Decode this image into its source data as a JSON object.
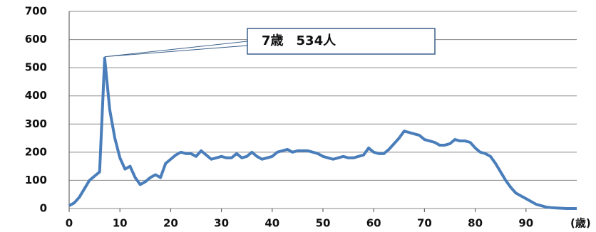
{
  "chart_data": {
    "type": "line",
    "x": [
      0,
      1,
      2,
      3,
      4,
      5,
      6,
      7,
      8,
      9,
      10,
      11,
      12,
      13,
      14,
      15,
      16,
      17,
      18,
      19,
      20,
      21,
      22,
      23,
      24,
      25,
      26,
      27,
      28,
      29,
      30,
      31,
      32,
      33,
      34,
      35,
      36,
      37,
      38,
      39,
      40,
      41,
      42,
      43,
      44,
      45,
      46,
      47,
      48,
      49,
      50,
      51,
      52,
      53,
      54,
      55,
      56,
      57,
      58,
      59,
      60,
      61,
      62,
      63,
      64,
      65,
      66,
      67,
      68,
      69,
      70,
      71,
      72,
      73,
      74,
      75,
      76,
      77,
      78,
      79,
      80,
      81,
      82,
      83,
      84,
      85,
      86,
      87,
      88,
      89,
      90,
      91,
      92,
      93,
      94,
      95,
      96,
      97,
      98,
      99,
      100
    ],
    "series": [
      {
        "color": "#4a7ebb",
        "values": [
          10,
          20,
          40,
          70,
          100,
          115,
          130,
          534,
          350,
          250,
          180,
          140,
          150,
          110,
          85,
          95,
          110,
          120,
          110,
          160,
          175,
          190,
          200,
          195,
          195,
          185,
          205,
          190,
          175,
          180,
          185,
          180,
          180,
          195,
          180,
          185,
          200,
          185,
          175,
          180,
          185,
          200,
          205,
          210,
          200,
          205,
          205,
          205,
          200,
          195,
          185,
          180,
          175,
          180,
          185,
          180,
          180,
          185,
          190,
          215,
          200,
          195,
          195,
          210,
          230,
          250,
          275,
          270,
          265,
          260,
          245,
          240,
          235,
          225,
          225,
          230,
          245,
          240,
          240,
          235,
          215,
          200,
          195,
          185,
          160,
          130,
          100,
          75,
          55,
          45,
          35,
          25,
          15,
          10,
          5,
          3,
          2,
          1,
          0,
          0,
          0
        ]
      }
    ],
    "xlim": [
      0,
      100
    ],
    "xticks": [
      0,
      10,
      20,
      30,
      40,
      50,
      60,
      70,
      80,
      90
    ],
    "ylim": [
      0,
      700
    ],
    "yticks": [
      0,
      100,
      200,
      300,
      400,
      500,
      600,
      700
    ],
    "x_label": "(歳)",
    "grid": true,
    "annotations": [
      {
        "text": "7歳　534人",
        "x": 7,
        "y": 534
      }
    ]
  }
}
